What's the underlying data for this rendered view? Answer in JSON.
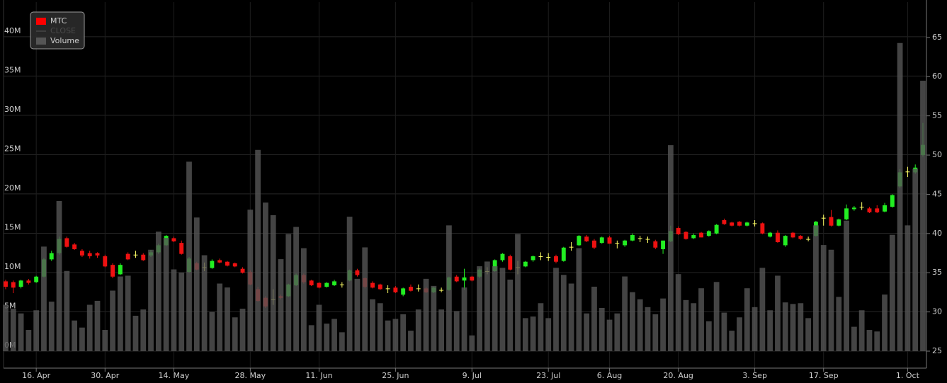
{
  "chart_data": {
    "type": "candlestick",
    "legend": "top-left",
    "grid": true,
    "categories": [
      null,
      null,
      null,
      null,
      "16. Apr",
      null,
      null,
      null,
      null,
      null,
      null,
      null,
      null,
      "30. Apr",
      null,
      null,
      null,
      null,
      null,
      null,
      null,
      null,
      "14. May",
      null,
      null,
      null,
      null,
      null,
      null,
      null,
      null,
      null,
      "28. May",
      null,
      null,
      null,
      null,
      null,
      null,
      null,
      null,
      "11. Jun",
      null,
      null,
      null,
      null,
      null,
      null,
      null,
      null,
      null,
      "25. Jun",
      null,
      null,
      null,
      null,
      null,
      null,
      null,
      null,
      null,
      "9. Jul",
      null,
      null,
      null,
      null,
      null,
      null,
      null,
      null,
      null,
      "23. Jul",
      null,
      null,
      null,
      null,
      null,
      null,
      null,
      "6. Aug",
      null,
      null,
      null,
      null,
      null,
      null,
      null,
      null,
      "20. Aug",
      null,
      null,
      null,
      null,
      null,
      null,
      null,
      null,
      null,
      "3. Sep",
      null,
      null,
      null,
      null,
      null,
      null,
      null,
      null,
      "17. Sep",
      null,
      null,
      null,
      null,
      null,
      null,
      null,
      null,
      null,
      null,
      "1. Oct",
      null,
      null
    ],
    "ylim": [
      0,
      44400000
    ],
    "yticks": [
      {
        "value": 0,
        "label": "0M"
      },
      {
        "value": 5000000,
        "label": "5M"
      },
      {
        "value": 10000000,
        "label": "10M"
      },
      {
        "value": 15000000,
        "label": "15M"
      },
      {
        "value": 20000000,
        "label": "20M"
      },
      {
        "value": 25000000,
        "label": "25M"
      },
      {
        "value": 30000000,
        "label": "30M"
      },
      {
        "value": 35000000,
        "label": "35M"
      },
      {
        "value": 40000000,
        "label": "40M"
      }
    ],
    "y2lim": [
      25,
      69.5
    ],
    "y2ticks": [
      25,
      30,
      35,
      40,
      45,
      50,
      55,
      60,
      65
    ],
    "series": [
      {
        "name": "MTC",
        "type": "candlestick",
        "axis": "y2",
        "color": "#ff0000",
        "up_color": "#22ee22",
        "down_color": "#ee1111",
        "unchanged_color": "#ffff66",
        "open": [
          33.9,
          33.8,
          33.2,
          34.0,
          33.8,
          34.5,
          36.7,
          37.5,
          39.4,
          38.6,
          37.8,
          37.5,
          37.5,
          37.1,
          36.0,
          34.8,
          37.4,
          37.3,
          37.3,
          37.2,
          37.6,
          38.5,
          39.4,
          38.8,
          35.1,
          36.2,
          35.7,
          35.6,
          36.6,
          36.4,
          36.2,
          35.5,
          35.1,
          32.9,
          31.8,
          31.6,
          32.0,
          32.0,
          33.4,
          34.7,
          34.0,
          33.7,
          33.2,
          33.4,
          33.5,
          34.0,
          35.3,
          34.3,
          33.7,
          33.5,
          33.0,
          33.1,
          32.2,
          33.2,
          33.0,
          33.0,
          32.5,
          32.8,
          32.8,
          34.5,
          34.0,
          34.5,
          34.5,
          35.2,
          35.2,
          36.6,
          37.1,
          35.7,
          35.8,
          36.6,
          37.1,
          37.0,
          37.1,
          36.5,
          38.3,
          38.5,
          39.6,
          39.1,
          38.8,
          39.5,
          38.8,
          38.5,
          39.1,
          39.4,
          39.3,
          39.0,
          38.0,
          39.0,
          40.7,
          40.2,
          39.4,
          40.1,
          39.7,
          40.0,
          41.7,
          41.4,
          41.5,
          41.0,
          41.3,
          41.3,
          39.6,
          40.1,
          38.5,
          40.1,
          39.7,
          39.3,
          39.7,
          42.0,
          42.1,
          41.0,
          41.8,
          43.1,
          43.4,
          43.2,
          43.2,
          42.8,
          43.4,
          46.0,
          47.9,
          47.8,
          50.0
        ],
        "high": [
          34.1,
          34.0,
          34.1,
          34.2,
          34.6,
          36.9,
          37.8,
          39.6,
          39.6,
          38.8,
          38.0,
          37.8,
          37.6,
          37.3,
          36.2,
          36.2,
          37.6,
          37.8,
          37.5,
          37.9,
          38.7,
          39.8,
          39.6,
          39.1,
          37.0,
          36.4,
          36.3,
          36.7,
          36.8,
          36.5,
          36.3,
          35.7,
          35.3,
          33.2,
          32.0,
          32.9,
          32.2,
          33.6,
          34.9,
          34.9,
          34.1,
          33.8,
          33.8,
          34.1,
          33.8,
          35.4,
          35.5,
          34.4,
          33.9,
          33.6,
          33.4,
          33.3,
          33.1,
          33.5,
          33.5,
          33.2,
          33.2,
          33.1,
          34.5,
          34.7,
          35.5,
          34.6,
          35.6,
          35.7,
          36.7,
          37.5,
          37.3,
          36.5,
          36.5,
          37.2,
          37.6,
          37.5,
          37.3,
          38.3,
          38.9,
          39.8,
          39.8,
          39.3,
          39.6,
          39.7,
          39.1,
          39.2,
          40.0,
          39.7,
          39.6,
          39.2,
          39.1,
          41.0,
          40.9,
          40.3,
          40.0,
          40.2,
          40.4,
          41.2,
          41.9,
          41.5,
          41.6,
          41.5,
          41.7,
          41.4,
          40.2,
          40.4,
          39.8,
          40.2,
          39.8,
          39.6,
          41.6,
          42.4,
          43.0,
          41.9,
          43.7,
          43.5,
          44.0,
          43.4,
          43.6,
          43.9,
          45.0,
          48.2,
          48.5,
          48.8,
          54.1
        ],
        "low": [
          32.9,
          32.4,
          33.0,
          33.5,
          33.7,
          34.4,
          36.5,
          37.3,
          38.2,
          37.9,
          37.0,
          36.8,
          36.9,
          35.7,
          34.3,
          34.7,
          36.6,
          36.9,
          36.5,
          37.0,
          37.4,
          38.4,
          38.9,
          37.3,
          35.0,
          35.3,
          35.2,
          35.5,
          36.2,
          35.8,
          35.7,
          34.9,
          33.4,
          31.3,
          30.5,
          30.9,
          31.6,
          31.9,
          33.3,
          33.6,
          33.3,
          33.0,
          33.1,
          33.3,
          33.1,
          33.9,
          34.5,
          33.0,
          33.0,
          32.8,
          32.4,
          32.4,
          32.0,
          32.6,
          32.6,
          32.4,
          32.4,
          32.5,
          32.7,
          33.8,
          32.8,
          33.9,
          34.3,
          34.8,
          35.1,
          36.4,
          35.3,
          34.8,
          35.7,
          36.4,
          36.6,
          36.5,
          36.2,
          36.4,
          37.8,
          38.4,
          38.9,
          38.0,
          38.7,
          38.7,
          38.1,
          38.3,
          39.0,
          38.9,
          38.8,
          38.0,
          37.4,
          38.9,
          39.8,
          39.2,
          39.3,
          39.5,
          39.6,
          39.9,
          41.1,
          40.9,
          40.9,
          40.9,
          40.9,
          39.9,
          39.5,
          38.8,
          38.3,
          39.4,
          39.2,
          39.0,
          39.6,
          41.0,
          40.9,
          40.9,
          41.7,
          42.9,
          43.0,
          42.6,
          42.6,
          42.7,
          43.3,
          45.8,
          47.2,
          47.6,
          49.8
        ],
        "close": [
          33.2,
          33.1,
          34.0,
          33.7,
          34.5,
          36.7,
          37.5,
          39.3,
          38.3,
          38.0,
          37.2,
          37.1,
          37.2,
          35.8,
          34.5,
          36.0,
          36.7,
          37.3,
          36.6,
          37.6,
          38.5,
          39.7,
          39.0,
          37.4,
          36.8,
          35.4,
          35.7,
          36.5,
          36.3,
          35.9,
          35.8,
          35.0,
          33.5,
          31.4,
          30.7,
          31.6,
          31.8,
          33.5,
          34.7,
          33.8,
          33.4,
          33.1,
          33.7,
          33.9,
          33.5,
          35.3,
          34.7,
          33.2,
          33.1,
          32.9,
          33.0,
          32.5,
          33.0,
          32.7,
          33.0,
          32.5,
          33.1,
          32.8,
          34.4,
          33.9,
          34.4,
          34.0,
          35.4,
          35.2,
          36.6,
          37.4,
          35.4,
          35.7,
          36.4,
          37.1,
          37.1,
          37.0,
          36.4,
          38.2,
          38.3,
          39.7,
          39.0,
          38.2,
          39.5,
          38.7,
          38.8,
          39.1,
          39.8,
          39.4,
          39.3,
          38.2,
          39.1,
          40.3,
          39.9,
          39.3,
          39.8,
          39.5,
          40.3,
          41.1,
          41.2,
          41.0,
          41.0,
          41.4,
          41.3,
          40.0,
          40.1,
          38.9,
          39.7,
          39.5,
          39.3,
          39.3,
          41.5,
          42.0,
          41.0,
          41.8,
          43.2,
          43.3,
          43.4,
          42.7,
          42.7,
          43.6,
          44.9,
          47.8,
          47.9,
          48.4,
          51.3
        ]
      },
      {
        "name": "CLOSE",
        "visible": false,
        "color": "#555555"
      },
      {
        "name": "Volume",
        "type": "bar",
        "axis": "y",
        "color": "#555555",
        "values": [
          5900000,
          5400000,
          4800000,
          2700000,
          5200000,
          13300000,
          6300000,
          19100000,
          10200000,
          3900000,
          3000000,
          5900000,
          6400000,
          2700000,
          7700000,
          9500000,
          9600000,
          4500000,
          5300000,
          12900000,
          15200000,
          14400000,
          10400000,
          10000000,
          24100000,
          17000000,
          12200000,
          5000000,
          8600000,
          8100000,
          4300000,
          5400000,
          18000000,
          25600000,
          18900000,
          17300000,
          11700000,
          14900000,
          15800000,
          13100000,
          3300000,
          5900000,
          3500000,
          4100000,
          2400000,
          17100000,
          9200000,
          13200000,
          6600000,
          6100000,
          3900000,
          4100000,
          4700000,
          2600000,
          5300000,
          9200000,
          8300000,
          5300000,
          16000000,
          5100000,
          8100000,
          2000000,
          10800000,
          11400000,
          10800000,
          10600000,
          9100000,
          14900000,
          4200000,
          4400000,
          6100000,
          4200000,
          10600000,
          9700000,
          8600000,
          13100000,
          4800000,
          8200000,
          5500000,
          4000000,
          4800000,
          9500000,
          7500000,
          6600000,
          5600000,
          4700000,
          6700000,
          26200000,
          9800000,
          6500000,
          6100000,
          8000000,
          3800000,
          8800000,
          4900000,
          2600000,
          4300000,
          8000000,
          5600000,
          10600000,
          5200000,
          9600000,
          6200000,
          6000000,
          6100000,
          4200000,
          16000000,
          13500000,
          12900000,
          6900000,
          16600000,
          3100000,
          5200000,
          2700000,
          2500000,
          7200000,
          14800000,
          39200000,
          16000000,
          23200000,
          34400000
        ]
      }
    ]
  }
}
